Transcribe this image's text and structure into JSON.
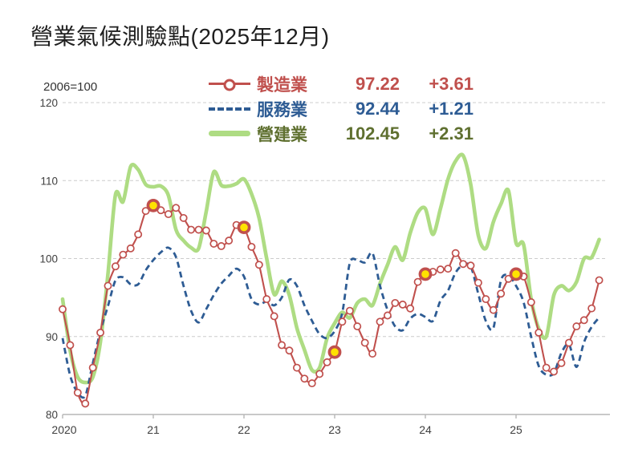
{
  "title": "營業氣候測驗點(2025年12月)",
  "axis_note": "2006=100",
  "legend": [
    {
      "label": "製造業",
      "value": "97.22",
      "change": "+3.61",
      "text_color": "#c0504d",
      "swatch": "line-circle"
    },
    {
      "label": "服務業",
      "value": "92.44",
      "change": "+1.21",
      "text_color": "#2e5c94",
      "swatch": "dashed-line"
    },
    {
      "label": "營建業",
      "value": "102.45",
      "change": "+2.31",
      "text_color": "#5f7030",
      "swatch": "thick-line",
      "swatch_color": "#aedc83"
    }
  ],
  "colors": {
    "manufacturing_line": "#c0504d",
    "services_line": "#2e5c94",
    "construction_line": "#aedc83",
    "marker_fill": "#ffffff",
    "highlight_fill": "#ffe200",
    "gridline": "#cccccc",
    "axis_line": "#b7b7b7",
    "tick_text": "#404040"
  },
  "chart_data": {
    "type": "line",
    "title": "營業氣候測驗點(2025年12月)",
    "x_unit": "month",
    "x_range": [
      "2020-01",
      "2025-12"
    ],
    "x_tick_labels": [
      "2020",
      "21",
      "22",
      "23",
      "24",
      "25"
    ],
    "y_ticks": [
      120,
      110,
      100,
      90,
      80
    ],
    "ylim": [
      80,
      120
    ],
    "grid": "dashed-horizontal",
    "legend_position": "top-center",
    "series": [
      {
        "name": "製造業",
        "style": "solid-with-circle-markers",
        "highlight_indices": [
          12,
          24,
          36,
          48,
          60
        ],
        "values": [
          93.5,
          88.9,
          82.8,
          81.4,
          86.0,
          90.5,
          96.5,
          99.0,
          100.5,
          101.3,
          103.1,
          106.1,
          106.8,
          106.2,
          105.7,
          106.5,
          105.2,
          103.7,
          103.7,
          103.6,
          101.9,
          101.6,
          102.3,
          104.3,
          104.0,
          101.5,
          99.2,
          94.8,
          92.6,
          88.9,
          88.2,
          86.0,
          84.6,
          84.0,
          85.2,
          86.7,
          88.0,
          91.9,
          93.3,
          91.3,
          89.2,
          87.8,
          91.9,
          92.7,
          94.3,
          94.1,
          93.6,
          97.0,
          98.0,
          98.3,
          98.6,
          98.7,
          100.7,
          99.3,
          99.1,
          96.9,
          94.8,
          93.4,
          95.5,
          97.4,
          98.0,
          97.7,
          94.4,
          90.5,
          86.0,
          85.5,
          86.6,
          89.2,
          91.3,
          92.1,
          93.61,
          97.22
        ]
      },
      {
        "name": "服務業",
        "style": "dashed",
        "values": [
          89.8,
          85.0,
          82.8,
          82.4,
          86.6,
          90.7,
          93.9,
          97.2,
          97.6,
          96.7,
          96.7,
          98.5,
          99.8,
          100.8,
          101.4,
          100.2,
          96.5,
          93.3,
          91.8,
          93.5,
          95.3,
          96.8,
          97.8,
          98.7,
          97.7,
          94.8,
          94.1,
          94.5,
          94.0,
          95.0,
          97.3,
          96.5,
          94.0,
          92.0,
          90.3,
          89.8,
          90.7,
          93.0,
          99.4,
          99.8,
          99.5,
          100.7,
          96.5,
          93.4,
          91.3,
          90.8,
          92.3,
          92.9,
          92.5,
          92.0,
          94.6,
          95.9,
          98.2,
          99.2,
          99.0,
          95.5,
          92.0,
          91.1,
          97.2,
          97.8,
          96.5,
          94.4,
          90.0,
          86.2,
          85.1,
          85.3,
          87.9,
          89.0,
          86.1,
          89.3,
          91.23,
          92.44
        ]
      },
      {
        "name": "營建業",
        "style": "thick-solid",
        "values": [
          94.8,
          88.2,
          84.8,
          84.1,
          84.8,
          89.3,
          98.0,
          108.2,
          107.3,
          111.8,
          111.4,
          109.5,
          109.2,
          109.3,
          108.1,
          103.7,
          102.3,
          101.4,
          101.3,
          106.0,
          111.1,
          109.4,
          109.3,
          109.6,
          110.2,
          108.3,
          105.2,
          100.0,
          95.4,
          97.1,
          95.3,
          91.1,
          88.3,
          85.7,
          86.0,
          89.8,
          91.7,
          93.1,
          92.4,
          94.3,
          94.8,
          94.0,
          96.8,
          99.2,
          101.5,
          99.8,
          103.3,
          105.9,
          106.4,
          103.1,
          106.4,
          110.2,
          112.5,
          113.2,
          109.5,
          103.0,
          101.3,
          104.7,
          107.0,
          108.7,
          102.0,
          101.8,
          94.8,
          91.0,
          90.0,
          95.3,
          96.5,
          95.9,
          97.0,
          100.0,
          100.14,
          102.45
        ]
      }
    ]
  }
}
